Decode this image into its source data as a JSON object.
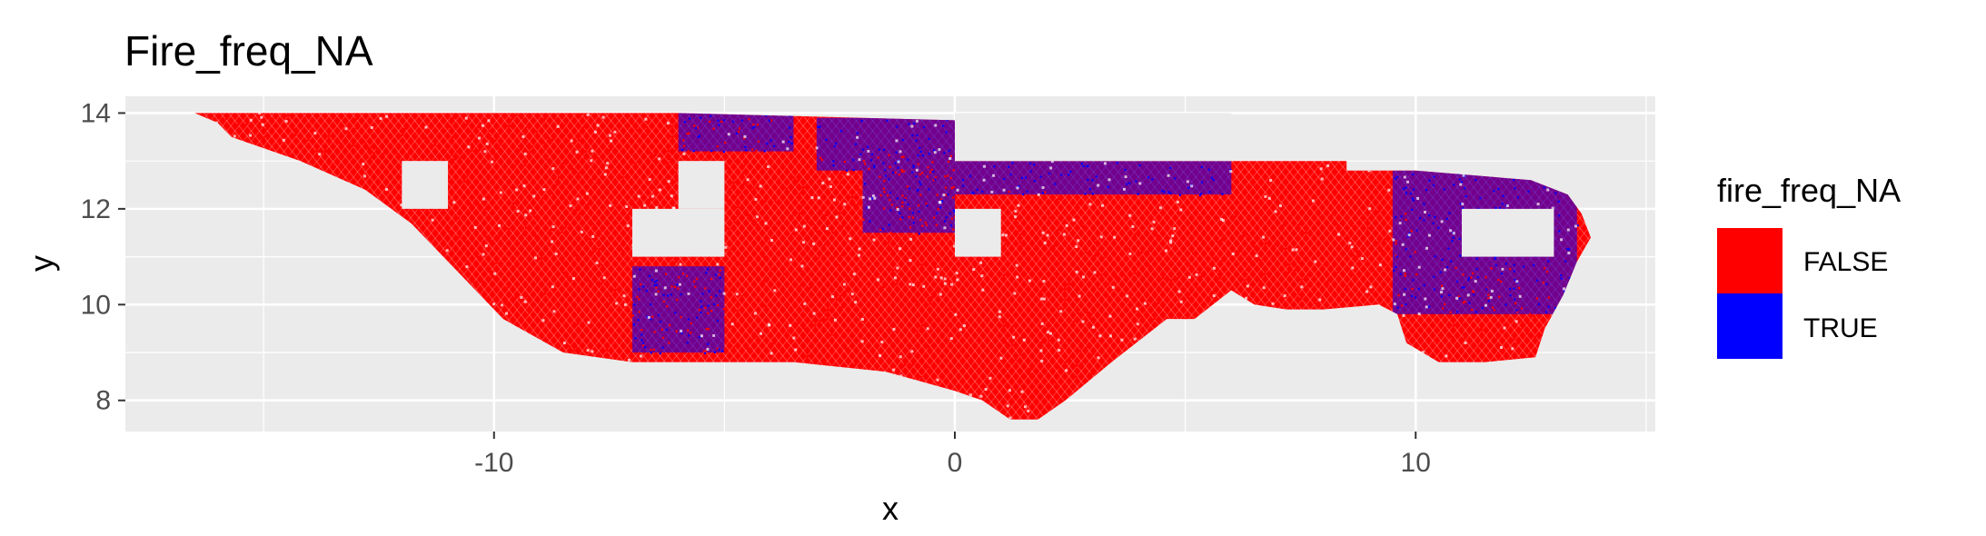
{
  "chart_data": {
    "type": "scatter",
    "title": "Fire_freq_NA",
    "xlabel": "x",
    "ylabel": "y",
    "xlim": [
      -18.0,
      15.2
    ],
    "ylim": [
      7.35,
      14.35
    ],
    "x_ticks": [
      -10,
      0,
      10
    ],
    "x_tick_labels": [
      "-10",
      "0",
      "10"
    ],
    "y_ticks": [
      8,
      10,
      12,
      14
    ],
    "y_tick_labels": [
      "8",
      "10",
      "12",
      "14"
    ],
    "grid": true,
    "legend": {
      "title": "fire_freq_NA",
      "placement": "right",
      "entries": [
        {
          "label": "FALSE",
          "color": "#FF0000"
        },
        {
          "label": "TRUE",
          "color": "#0000FF"
        }
      ]
    },
    "series": [
      {
        "name": "FALSE",
        "color": "#FF0000",
        "regions": [
          {
            "x": [
              -16.0,
              -8.0
            ],
            "y": [
              13.0,
              14.0
            ]
          },
          {
            "x": [
              -11.0,
              -4.0
            ],
            "y": [
              9.0,
              13.9
            ]
          },
          {
            "x": [
              -4.0,
              0.0
            ],
            "y": [
              8.4,
              13.2
            ]
          },
          {
            "x": [
              1.0,
              3.0
            ],
            "y": [
              8.2,
              12.4
            ]
          },
          {
            "x": [
              3.0,
              6.0
            ],
            "y": [
              9.4,
              11.5
            ]
          },
          {
            "x": [
              6.0,
              10.0
            ],
            "y": [
              10.0,
              12.0
            ]
          },
          {
            "x": [
              10.5,
              13.0
            ],
            "y": [
              8.8,
              10.8
            ]
          }
        ]
      },
      {
        "name": "TRUE",
        "color": "#0000FF",
        "regions": [
          {
            "x": [
              -6.0,
              -3.5
            ],
            "y": [
              13.2,
              14.0
            ]
          },
          {
            "x": [
              -3.0,
              0.0
            ],
            "y": [
              12.8,
              13.9
            ]
          },
          {
            "x": [
              0.0,
              6.0
            ],
            "y": [
              12.3,
              13.0
            ]
          },
          {
            "x": [
              -7.0,
              -5.0
            ],
            "y": [
              9.0,
              10.8
            ]
          },
          {
            "x": [
              -2.0,
              0.0
            ],
            "y": [
              11.5,
              12.8
            ]
          },
          {
            "x": [
              9.5,
              13.5
            ],
            "y": [
              9.8,
              12.8
            ]
          }
        ]
      }
    ]
  }
}
